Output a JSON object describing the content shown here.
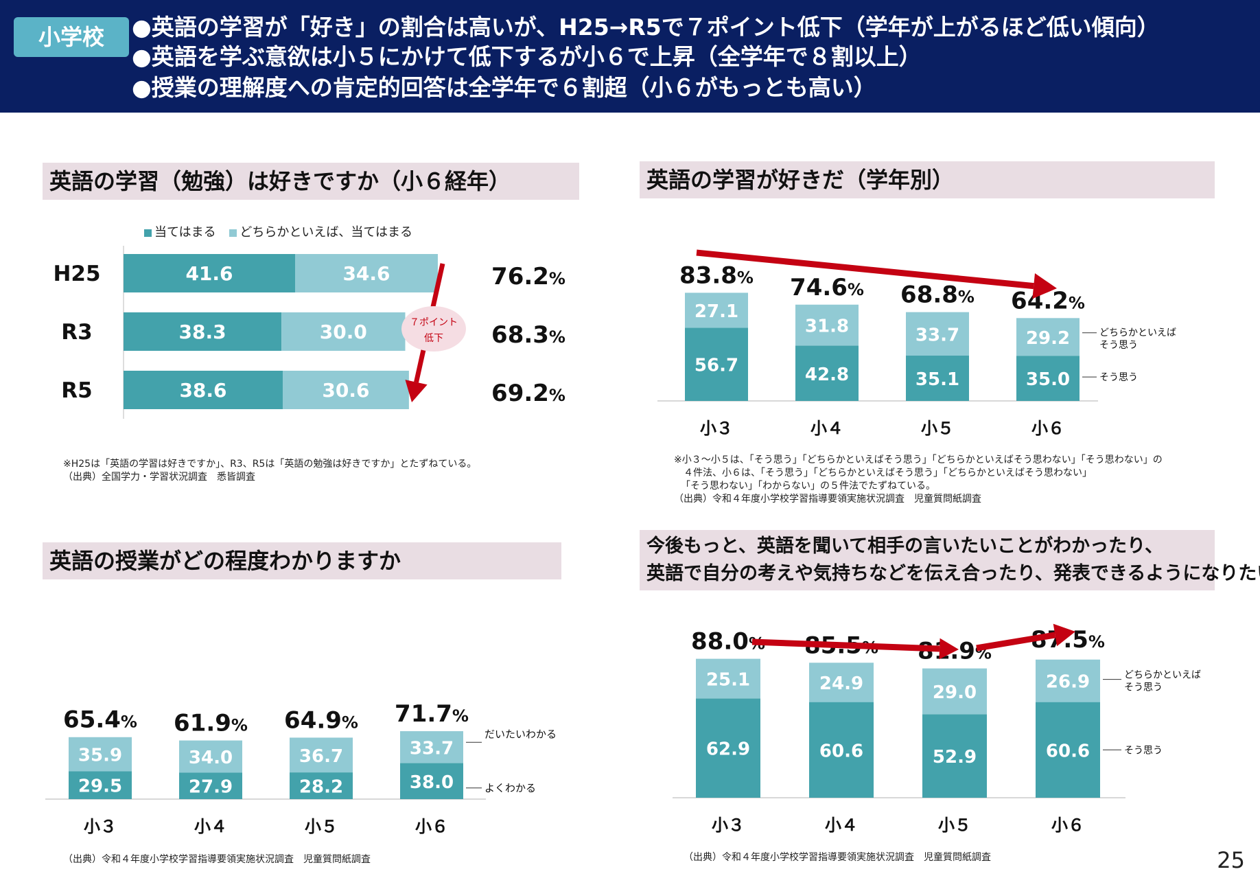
{
  "header": {
    "badge": "小学校",
    "lines": [
      "●英語の学習が「好き」の割合は高いが、H25→R5で７ポイント低下（学年が上がるほど低い傾向）",
      "●英語を学ぶ意欲は小５にかけて低下するが小６で上昇（全学年で８割以上）",
      "●授業の理解度への肯定的回答は全学年で６割超（小６がもっとも高い）"
    ]
  },
  "colors": {
    "dark": "#43a2ab",
    "light": "#91cad4",
    "header": "#0a1f62",
    "arrow": "#c40212",
    "title_bg": "#e9dde3"
  },
  "section1": {
    "title": "英語の学習（勉強）は好きですか（小６経年）",
    "legend": [
      "当てはまる",
      "どちらかといえば、当てはまる"
    ],
    "annotation": [
      "７ポイント",
      "低下"
    ],
    "notes": [
      "※H25は「英語の学習は好きですか」、R3、R5は「英語の勉強は好きですか」とたずねている。",
      "（出典）全国学力・学習状況調査　悉皆調査"
    ]
  },
  "section2": {
    "title": "英語の学習が好きだ（学年別）",
    "label_top": [
      "どちらかといえば",
      "そう思う"
    ],
    "label_bottom": "そう思う",
    "notes": [
      "※小３～小５は、「そう思う」「どちらかといえばそう思う」「どちらかといえばそう思わない」「そう思わない」の",
      "　４件法、小６は、「そう思う」「どちらかといえばそう思う」「どちらかといえばそう思わない」",
      "「そう思わない」「わからない」の５件法でたずねている。",
      "（出典）令和４年度小学校学習指導要領実施状況調査　児童質問紙調査"
    ]
  },
  "section3": {
    "title": "英語の授業がどの程度わかりますか",
    "label_top": "だいたいわかる",
    "label_bottom": "よくわかる",
    "notes": [
      "（出典）令和４年度小学校学習指導要領実施状況調査　児童質問紙調査"
    ]
  },
  "section4": {
    "title_lines": [
      "今後もっと、英語を聞いて相手の言いたいことがわかったり、",
      "英語で自分の考えや気持ちなどを伝え合ったり、発表できるようになりたい"
    ],
    "label_top": [
      "どちらかといえば",
      "そう思う"
    ],
    "label_bottom": "そう思う",
    "notes": [
      "（出典）令和４年度小学校学習指導要領実施状況調査　児童質問紙調査"
    ]
  },
  "page_number": "25",
  "chart_data": [
    {
      "type": "bar",
      "orientation": "horizontal",
      "stacked": true,
      "title": "英語の学習（勉強）は好きですか（小６経年）",
      "categories": [
        "H25",
        "R3",
        "R5"
      ],
      "series": [
        {
          "name": "当てはまる",
          "values": [
            41.6,
            38.3,
            38.6
          ]
        },
        {
          "name": "どちらかといえば、当てはまる",
          "values": [
            34.6,
            30.0,
            30.6
          ]
        }
      ],
      "value_labels": [
        "41.6",
        "38.3",
        "38.6",
        "34.6",
        "30.0",
        "30.6"
      ],
      "totals": [
        "76.2",
        "68.3",
        "69.2"
      ],
      "unit": "%"
    },
    {
      "type": "bar",
      "stacked": true,
      "title": "英語の学習が好きだ（学年別）",
      "categories": [
        "小３",
        "小４",
        "小５",
        "小６"
      ],
      "series": [
        {
          "name": "そう思う",
          "values": [
            56.7,
            42.8,
            35.1,
            35.0
          ]
        },
        {
          "name": "どちらかといえばそう思う",
          "values": [
            27.1,
            31.8,
            33.7,
            29.2
          ]
        }
      ],
      "value_labels": [
        "56.7",
        "42.8",
        "35.1",
        "35.0",
        "27.1",
        "31.8",
        "33.7",
        "29.2"
      ],
      "totals": [
        "83.8",
        "74.6",
        "68.8",
        "64.2"
      ],
      "unit": "%",
      "trend_arrows": [
        [
          0,
          3
        ]
      ]
    },
    {
      "type": "bar",
      "stacked": true,
      "title": "英語の授業がどの程度わかりますか",
      "categories": [
        "小３",
        "小４",
        "小５",
        "小６"
      ],
      "series": [
        {
          "name": "よくわかる",
          "values": [
            29.5,
            27.9,
            28.2,
            38.0
          ]
        },
        {
          "name": "だいたいわかる",
          "values": [
            35.9,
            34.0,
            36.7,
            33.7
          ]
        }
      ],
      "value_labels": [
        "29.5",
        "27.9",
        "28.2",
        "38.0",
        "35.9",
        "34.0",
        "36.7",
        "33.7"
      ],
      "totals": [
        "65.4",
        "61.9",
        "64.9",
        "71.7"
      ],
      "unit": "%"
    },
    {
      "type": "bar",
      "stacked": true,
      "title": "今後もっと、英語を聞いて相手の言いたいことがわかったり、英語で自分の考えや気持ちなどを伝え合ったり、発表できるようになりたい",
      "categories": [
        "小３",
        "小４",
        "小５",
        "小６"
      ],
      "series": [
        {
          "name": "そう思う",
          "values": [
            62.9,
            60.6,
            52.9,
            60.6
          ]
        },
        {
          "name": "どちらかといえばそう思う",
          "values": [
            25.1,
            24.9,
            29.0,
            26.9
          ]
        }
      ],
      "value_labels": [
        "62.9",
        "60.6",
        "52.9",
        "60.6",
        "25.1",
        "24.9",
        "29.0",
        "26.9"
      ],
      "totals": [
        "88.0",
        "85.5",
        "81.9",
        "87.5"
      ],
      "unit": "%",
      "trend_arrows": [
        [
          0,
          2
        ],
        [
          2,
          3
        ]
      ]
    }
  ]
}
